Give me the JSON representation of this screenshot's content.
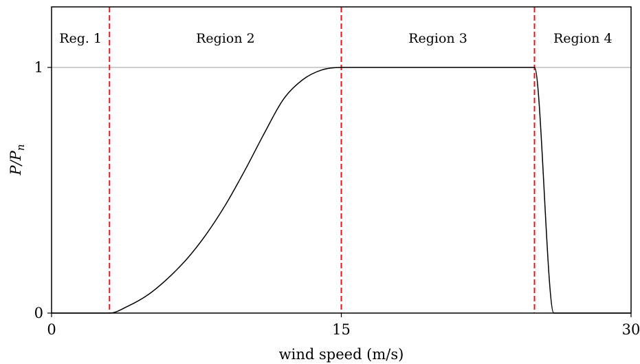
{
  "chart_data": {
    "type": "line",
    "title": "",
    "xlabel": "wind speed (m/s)",
    "ylabel": "P/P",
    "ylabel_subscript": "n",
    "xlim": [
      0,
      30
    ],
    "ylim": [
      0,
      1
    ],
    "xticks": [
      {
        "value": 0,
        "label": "0"
      },
      {
        "value": 15,
        "label": "15"
      },
      {
        "value": 30,
        "label": "30"
      }
    ],
    "yticks": [
      {
        "value": 0,
        "label": "0"
      },
      {
        "value": 1,
        "label": "1"
      }
    ],
    "grid": false,
    "legend": "none",
    "reference_line": {
      "y": 1,
      "color": "#b0b0b0"
    },
    "region_boundaries": [
      3,
      15,
      25
    ],
    "boundary_color": "#e8161b",
    "regions": [
      {
        "label": "Reg. 1",
        "from": 0,
        "to": 3
      },
      {
        "label": "Region 2",
        "from": 3,
        "to": 15
      },
      {
        "label": "Region 3",
        "from": 15,
        "to": 25
      },
      {
        "label": "Region 4",
        "from": 25,
        "to": 30
      }
    ],
    "series": [
      {
        "color": "#000000",
        "x": [
          0,
          3,
          4,
          5,
          6,
          7,
          8,
          9,
          10,
          11,
          12,
          13,
          14,
          15,
          20,
          25,
          26,
          30
        ],
        "y": [
          0,
          0,
          0.03,
          0.075,
          0.14,
          0.22,
          0.32,
          0.44,
          0.58,
          0.73,
          0.87,
          0.95,
          0.99,
          1.0,
          1.0,
          1.0,
          0,
          0
        ]
      }
    ]
  }
}
